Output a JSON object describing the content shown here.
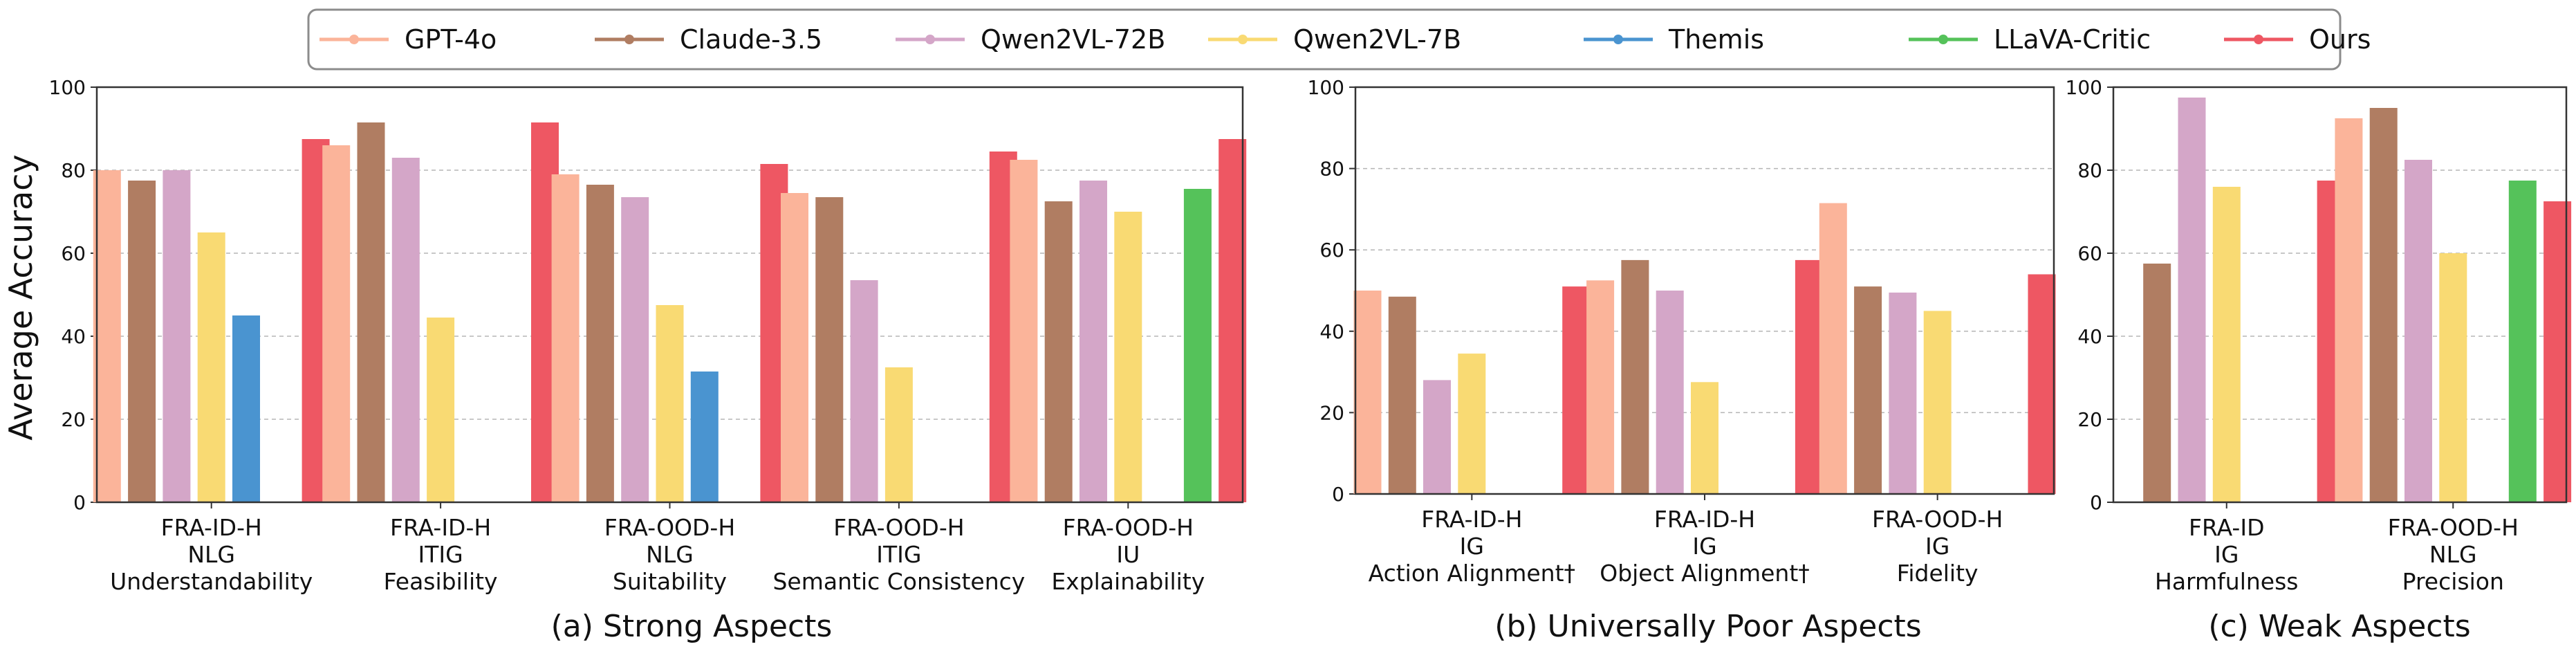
{
  "legend": [
    {
      "name": "GPT-4o",
      "color": "#fbb49a"
    },
    {
      "name": "Claude-3.5",
      "color": "#b07d62"
    },
    {
      "name": "Qwen2VL-72B",
      "color": "#d4a6c8"
    },
    {
      "name": "Qwen2VL-7B",
      "color": "#f9da73"
    },
    {
      "name": "Themis",
      "color": "#4a94d0"
    },
    {
      "name": "LLaVA-Critic",
      "color": "#55c25a"
    },
    {
      "name": "Ours",
      "color": "#ee5763"
    }
  ],
  "ylabel": "Average Accuracy",
  "chart_data": [
    {
      "type": "bar",
      "title": "(a) Strong Aspects",
      "ylabel": "Average Accuracy",
      "ylim": [
        0,
        100
      ],
      "yticks": [
        "0",
        "20",
        "40",
        "60",
        "80",
        "100"
      ],
      "grid": true,
      "categories": [
        [
          "FRA-ID-H",
          "NLG",
          "Understandability"
        ],
        [
          "FRA-ID-H",
          "ITIG",
          "Feasibility"
        ],
        [
          "FRA-OOD-H",
          "NLG",
          "Suitability"
        ],
        [
          "FRA-OOD-H",
          "ITIG",
          "Semantic Consistency"
        ],
        [
          "FRA-OOD-H",
          "IU",
          "Explainability"
        ]
      ],
      "series": [
        {
          "name": "GPT-4o",
          "values": [
            80,
            86,
            79,
            74.5,
            82.5
          ]
        },
        {
          "name": "Claude-3.5",
          "values": [
            77.5,
            91.5,
            76.5,
            73.5,
            72.5
          ]
        },
        {
          "name": "Qwen2VL-72B",
          "values": [
            80,
            83,
            73.5,
            53.5,
            77.5
          ]
        },
        {
          "name": "Qwen2VL-7B",
          "values": [
            65,
            44.5,
            47.5,
            32.5,
            70
          ]
        },
        {
          "name": "Themis",
          "values": [
            45,
            null,
            31.5,
            null,
            null
          ]
        },
        {
          "name": "LLaVA-Critic",
          "values": [
            null,
            null,
            null,
            null,
            75.5
          ]
        },
        {
          "name": "Ours",
          "values": [
            87.5,
            91.5,
            81.5,
            84.5,
            87.5
          ]
        }
      ]
    },
    {
      "type": "bar",
      "title": "(b) Universally Poor Aspects",
      "ylim": [
        0,
        100
      ],
      "yticks": [
        "0",
        "20",
        "40",
        "60",
        "80",
        "100"
      ],
      "grid": true,
      "categories": [
        [
          "FRA-ID-H",
          "IG",
          "Action Alignment†"
        ],
        [
          "FRA-ID-H",
          "IG",
          "Object Alignment†"
        ],
        [
          "FRA-OOD-H",
          "IG",
          "Fidelity"
        ]
      ],
      "series": [
        {
          "name": "GPT-4o",
          "values": [
            50,
            52.5,
            71.5
          ]
        },
        {
          "name": "Claude-3.5",
          "values": [
            48.5,
            57.5,
            51
          ]
        },
        {
          "name": "Qwen2VL-72B",
          "values": [
            28,
            50,
            49.5
          ]
        },
        {
          "name": "Qwen2VL-7B",
          "values": [
            34.5,
            27.5,
            45
          ]
        },
        {
          "name": "Themis",
          "values": [
            null,
            null,
            null
          ]
        },
        {
          "name": "LLaVA-Critic",
          "values": [
            null,
            null,
            null
          ]
        },
        {
          "name": "Ours",
          "values": [
            51,
            57.5,
            54
          ]
        }
      ]
    },
    {
      "type": "bar",
      "title": "(c) Weak Aspects",
      "ylim": [
        0,
        100
      ],
      "yticks": [
        "0",
        "20",
        "40",
        "60",
        "80",
        "100"
      ],
      "grid": true,
      "categories": [
        [
          "FRA-ID",
          "IG",
          "Harmfulness"
        ],
        [
          "FRA-OOD-H",
          "NLG",
          "Precision"
        ]
      ],
      "series": [
        {
          "name": "GPT-4o",
          "values": [
            null,
            92.5
          ]
        },
        {
          "name": "Claude-3.5",
          "values": [
            57.5,
            95
          ]
        },
        {
          "name": "Qwen2VL-72B",
          "values": [
            97.5,
            82.5
          ]
        },
        {
          "name": "Qwen2VL-7B",
          "values": [
            76,
            60
          ]
        },
        {
          "name": "Themis",
          "values": [
            null,
            null
          ]
        },
        {
          "name": "LLaVA-Critic",
          "values": [
            null,
            77.5
          ]
        },
        {
          "name": "Ours",
          "values": [
            77.5,
            72.5
          ]
        }
      ]
    }
  ]
}
